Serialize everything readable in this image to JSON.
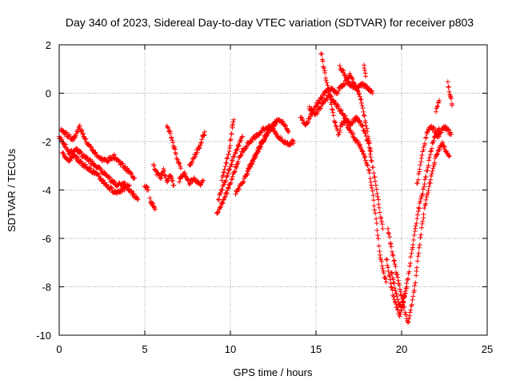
{
  "chart_data": {
    "type": "scatter",
    "title": "Day 340 of 2023, Sidereal Day-to-day VTEC variation (SDTVAR) for receiver p803",
    "xlabel": "GPS time / hours",
    "ylabel": "SDTVAR / TECUs",
    "xlim": [
      0,
      25
    ],
    "ylim": [
      -10,
      2
    ],
    "xticks": [
      "0",
      "5",
      "10",
      "15",
      "20",
      "25"
    ],
    "yticks": [
      "-10",
      "-8",
      "-6",
      "-4",
      "-2",
      "0",
      "2"
    ],
    "grid": true,
    "marker": "+",
    "color": "#ff0000",
    "series": [
      {
        "tracks": [
          [
            [
              0.0,
              -1.8
            ],
            [
              0.3,
              -2.1
            ],
            [
              0.6,
              -2.5
            ],
            [
              1.0,
              -2.3
            ],
            [
              1.4,
              -2.6
            ],
            [
              1.8,
              -2.8
            ],
            [
              2.2,
              -3.0
            ],
            [
              2.6,
              -3.3
            ],
            [
              3.0,
              -3.6
            ],
            [
              3.4,
              -3.8
            ],
            [
              3.8,
              -3.7
            ],
            [
              4.2,
              -4.1
            ],
            [
              4.6,
              -4.4
            ]
          ],
          [
            [
              0.1,
              -1.5
            ],
            [
              0.4,
              -1.7
            ],
            [
              0.8,
              -1.9
            ],
            [
              1.2,
              -1.4
            ],
            [
              1.6,
              -2.0
            ],
            [
              2.0,
              -2.4
            ],
            [
              2.4,
              -2.7
            ],
            [
              2.8,
              -2.8
            ],
            [
              3.2,
              -2.6
            ],
            [
              3.6,
              -2.9
            ],
            [
              4.0,
              -3.2
            ],
            [
              4.4,
              -3.5
            ]
          ],
          [
            [
              0.2,
              -2.4
            ],
            [
              0.5,
              -2.8
            ],
            [
              0.9,
              -2.6
            ],
            [
              1.3,
              -2.9
            ],
            [
              1.7,
              -3.1
            ],
            [
              2.1,
              -3.3
            ],
            [
              2.5,
              -3.6
            ],
            [
              2.9,
              -3.9
            ],
            [
              3.3,
              -4.1
            ],
            [
              3.7,
              -4.0
            ],
            [
              4.1,
              -3.8
            ]
          ],
          [
            [
              5.3,
              -4.4
            ],
            [
              5.45,
              -4.6
            ],
            [
              5.6,
              -4.8
            ]
          ],
          [
            [
              5.0,
              -3.8
            ],
            [
              5.2,
              -4.0
            ]
          ],
          [
            [
              5.5,
              -3.0
            ],
            [
              5.7,
              -3.3
            ],
            [
              5.9,
              -3.5
            ],
            [
              6.1,
              -3.2
            ],
            [
              6.3,
              -3.6
            ],
            [
              6.5,
              -3.4
            ],
            [
              6.7,
              -3.8
            ]
          ],
          [
            [
              6.3,
              -1.4
            ],
            [
              6.5,
              -1.7
            ],
            [
              6.7,
              -2.2
            ],
            [
              6.9,
              -2.7
            ],
            [
              7.1,
              -3.1
            ]
          ],
          [
            [
              7.0,
              -3.6
            ],
            [
              7.3,
              -3.3
            ],
            [
              7.6,
              -3.7
            ],
            [
              7.9,
              -3.5
            ],
            [
              8.2,
              -3.8
            ],
            [
              8.4,
              -3.6
            ]
          ],
          [
            [
              7.6,
              -3.0
            ],
            [
              7.9,
              -2.6
            ],
            [
              8.2,
              -2.2
            ],
            [
              8.4,
              -1.8
            ],
            [
              8.5,
              -1.6
            ]
          ],
          [
            [
              9.2,
              -5.0
            ],
            [
              9.5,
              -4.6
            ],
            [
              9.8,
              -4.1
            ],
            [
              10.1,
              -3.5
            ],
            [
              10.4,
              -2.9
            ],
            [
              10.7,
              -2.4
            ],
            [
              11.0,
              -2.1
            ],
            [
              11.3,
              -1.9
            ],
            [
              11.6,
              -1.7
            ],
            [
              11.9,
              -1.5
            ],
            [
              12.2,
              -1.4
            ],
            [
              12.5,
              -1.5
            ],
            [
              12.8,
              -1.8
            ],
            [
              13.1,
              -2.0
            ],
            [
              13.4,
              -2.1
            ],
            [
              13.7,
              -2.0
            ]
          ],
          [
            [
              9.3,
              -4.4
            ],
            [
              9.6,
              -3.8
            ],
            [
              9.9,
              -3.2
            ],
            [
              10.2,
              -2.6
            ],
            [
              10.5,
              -2.1
            ],
            [
              10.7,
              -1.8
            ]
          ],
          [
            [
              9.5,
              -3.6
            ],
            [
              9.7,
              -3.0
            ],
            [
              9.9,
              -2.5
            ],
            [
              10.0,
              -2.0
            ],
            [
              10.1,
              -1.5
            ],
            [
              10.2,
              -1.1
            ]
          ],
          [
            [
              10.3,
              -4.1
            ],
            [
              10.6,
              -3.8
            ],
            [
              10.9,
              -3.4
            ],
            [
              11.2,
              -3.0
            ],
            [
              11.5,
              -2.5
            ],
            [
              11.8,
              -2.1
            ],
            [
              12.1,
              -1.7
            ],
            [
              12.4,
              -1.4
            ],
            [
              12.7,
              -1.2
            ]
          ],
          [
            [
              11.0,
              -3.2
            ],
            [
              11.3,
              -2.8
            ],
            [
              11.6,
              -2.4
            ],
            [
              11.9,
              -2.0
            ],
            [
              12.2,
              -1.6
            ],
            [
              12.5,
              -1.3
            ],
            [
              12.8,
              -1.1
            ],
            [
              13.1,
              -1.2
            ],
            [
              13.4,
              -1.6
            ]
          ],
          [
            [
              14.1,
              -1.0
            ],
            [
              14.4,
              -1.3
            ],
            [
              14.7,
              -0.9
            ],
            [
              15.0,
              -0.5
            ],
            [
              15.3,
              -0.2
            ],
            [
              15.6,
              0.1
            ],
            [
              15.9,
              0.2
            ],
            [
              16.2,
              0.0
            ],
            [
              16.5,
              0.3
            ],
            [
              16.8,
              0.5
            ],
            [
              17.1,
              0.3
            ],
            [
              17.4,
              0.2
            ],
            [
              17.7,
              0.4
            ],
            [
              18.0,
              0.2
            ],
            [
              18.3,
              0.0
            ]
          ],
          [
            [
              14.6,
              -0.6
            ],
            [
              15.0,
              -0.9
            ],
            [
              15.4,
              -0.4
            ],
            [
              15.8,
              -0.1
            ],
            [
              16.2,
              -0.5
            ],
            [
              16.6,
              -0.9
            ],
            [
              17.0,
              -1.3
            ],
            [
              17.4,
              -1.0
            ],
            [
              17.8,
              -1.5
            ],
            [
              18.1,
              -2.2
            ],
            [
              18.3,
              -3.0
            ],
            [
              18.5,
              -3.8
            ],
            [
              18.7,
              -4.8
            ],
            [
              18.9,
              -5.6
            ]
          ],
          [
            [
              15.3,
              1.7
            ],
            [
              15.5,
              0.9
            ],
            [
              15.7,
              0.2
            ],
            [
              15.9,
              -0.5
            ],
            [
              16.1,
              -1.2
            ],
            [
              16.3,
              -1.7
            ],
            [
              16.5,
              -1.3
            ],
            [
              16.7,
              -1.1
            ],
            [
              16.9,
              -1.4
            ],
            [
              17.1,
              -1.7
            ],
            [
              17.3,
              -1.9
            ],
            [
              17.5,
              -2.1
            ],
            [
              17.7,
              -2.4
            ],
            [
              17.9,
              -2.7
            ],
            [
              18.1,
              -3.2
            ],
            [
              18.3,
              -4.1
            ],
            [
              18.5,
              -5.2
            ],
            [
              18.7,
              -6.5
            ],
            [
              18.9,
              -7.3
            ],
            [
              19.1,
              -7.8
            ]
          ],
          [
            [
              16.4,
              1.1
            ],
            [
              16.6,
              0.9
            ],
            [
              16.8,
              0.6
            ],
            [
              17.0,
              0.8
            ],
            [
              17.2,
              0.4
            ],
            [
              17.4,
              0.2
            ],
            [
              17.6,
              -0.2
            ],
            [
              17.8,
              -0.9
            ],
            [
              18.0,
              -1.6
            ],
            [
              18.2,
              -2.4
            ]
          ],
          [
            [
              17.8,
              1.2
            ],
            [
              17.9,
              0.7
            ]
          ],
          [
            [
              19.2,
              -5.6
            ],
            [
              19.4,
              -6.4
            ],
            [
              19.6,
              -7.1
            ],
            [
              19.8,
              -7.8
            ],
            [
              20.0,
              -8.4
            ],
            [
              20.2,
              -9.0
            ],
            [
              20.4,
              -9.5
            ],
            [
              20.6,
              -8.7
            ],
            [
              20.8,
              -7.8
            ],
            [
              21.0,
              -6.6
            ],
            [
              21.2,
              -5.4
            ],
            [
              21.4,
              -4.5
            ],
            [
              21.6,
              -3.9
            ],
            [
              21.8,
              -3.2
            ],
            [
              22.0,
              -2.6
            ],
            [
              22.2,
              -2.3
            ],
            [
              22.4,
              -2.1
            ],
            [
              22.6,
              -2.4
            ],
            [
              22.8,
              -2.6
            ]
          ],
          [
            [
              19.4,
              -7.4
            ],
            [
              19.6,
              -8.0
            ],
            [
              19.8,
              -8.6
            ],
            [
              20.0,
              -8.9
            ],
            [
              20.2,
              -8.3
            ],
            [
              20.4,
              -7.5
            ],
            [
              20.6,
              -6.5
            ],
            [
              20.8,
              -5.6
            ],
            [
              21.0,
              -4.8
            ],
            [
              21.2,
              -4.2
            ],
            [
              21.4,
              -3.5
            ],
            [
              21.6,
              -2.8
            ],
            [
              21.8,
              -2.1
            ],
            [
              22.0,
              -1.7
            ],
            [
              22.2,
              -1.5
            ]
          ],
          [
            [
              19.1,
              -6.8
            ],
            [
              19.3,
              -7.6
            ],
            [
              19.5,
              -8.3
            ],
            [
              19.7,
              -8.8
            ],
            [
              19.9,
              -9.2
            ],
            [
              20.1,
              -8.6
            ],
            [
              20.3,
              -8.0
            ]
          ],
          [
            [
              20.9,
              -3.8
            ],
            [
              21.1,
              -3.0
            ],
            [
              21.3,
              -2.2
            ],
            [
              21.5,
              -1.6
            ],
            [
              21.7,
              -1.4
            ],
            [
              21.9,
              -1.5
            ],
            [
              22.1,
              -1.8
            ],
            [
              22.3,
              -1.6
            ],
            [
              22.5,
              -1.4
            ],
            [
              22.7,
              -1.5
            ],
            [
              22.9,
              -1.7
            ]
          ],
          [
            [
              22.0,
              -0.8
            ],
            [
              22.2,
              -0.3
            ]
          ],
          [
            [
              22.7,
              0.4
            ],
            [
              22.85,
              -0.1
            ],
            [
              22.95,
              -0.5
            ]
          ]
        ]
      }
    ]
  }
}
